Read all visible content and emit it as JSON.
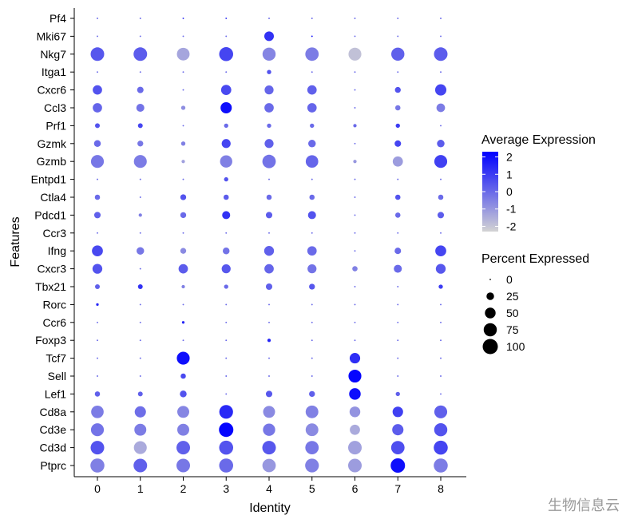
{
  "watermark": "生物信息云",
  "chart_data": {
    "type": "dotplot",
    "xlabel": "Identity",
    "ylabel": "Features",
    "categories": [
      "0",
      "1",
      "2",
      "3",
      "4",
      "5",
      "6",
      "7",
      "8"
    ],
    "features": [
      "Pf4",
      "Mki67",
      "Nkg7",
      "Itga1",
      "Cxcr6",
      "Ccl3",
      "Prf1",
      "Gzmk",
      "Gzmb",
      "Entpd1",
      "Ctla4",
      "Pdcd1",
      "Ccr3",
      "Ifng",
      "Cxcr3",
      "Tbx21",
      "Rorc",
      "Ccr6",
      "Foxp3",
      "Tcf7",
      "Sell",
      "Lef1",
      "Cd8a",
      "Cd3e",
      "Cd3d",
      "Ptprc"
    ],
    "percent_expressed": [
      [
        1,
        1,
        1,
        1,
        1,
        1,
        1,
        1,
        1
      ],
      [
        1,
        1,
        1,
        1,
        40,
        1,
        1,
        1,
        1
      ],
      [
        80,
        80,
        70,
        85,
        75,
        78,
        72,
        75,
        80
      ],
      [
        1,
        1,
        1,
        1,
        8,
        1,
        1,
        1,
        1
      ],
      [
        38,
        18,
        1,
        45,
        35,
        38,
        1,
        15,
        55
      ],
      [
        38,
        28,
        8,
        55,
        38,
        38,
        1,
        12,
        32
      ],
      [
        10,
        10,
        1,
        8,
        8,
        8,
        5,
        8,
        1
      ],
      [
        20,
        15,
        8,
        35,
        35,
        25,
        1,
        18,
        25
      ],
      [
        72,
        72,
        5,
        65,
        78,
        68,
        5,
        45,
        72
      ],
      [
        1,
        1,
        1,
        8,
        1,
        1,
        1,
        1,
        1
      ],
      [
        12,
        1,
        15,
        12,
        12,
        12,
        1,
        12,
        12
      ],
      [
        18,
        5,
        15,
        28,
        18,
        28,
        1,
        12,
        18
      ],
      [
        1,
        1,
        1,
        1,
        1,
        1,
        1,
        1,
        1
      ],
      [
        52,
        25,
        15,
        20,
        42,
        38,
        1,
        18,
        52
      ],
      [
        42,
        1,
        38,
        35,
        38,
        35,
        12,
        28,
        42
      ],
      [
        10,
        10,
        5,
        8,
        18,
        15,
        1,
        1,
        8
      ],
      [
        3,
        1,
        1,
        1,
        1,
        1,
        1,
        1,
        1
      ],
      [
        1,
        1,
        3,
        1,
        1,
        1,
        1,
        1,
        1
      ],
      [
        1,
        1,
        1,
        1,
        5,
        1,
        1,
        1,
        1
      ],
      [
        1,
        1,
        72,
        1,
        1,
        1,
        48,
        1,
        1
      ],
      [
        1,
        1,
        12,
        1,
        1,
        1,
        72,
        1,
        1
      ],
      [
        12,
        10,
        20,
        1,
        18,
        15,
        58,
        8,
        1
      ],
      [
        68,
        55,
        62,
        82,
        62,
        70,
        50,
        48,
        72
      ],
      [
        72,
        62,
        62,
        90,
        65,
        70,
        45,
        55,
        75
      ],
      [
        80,
        72,
        80,
        85,
        80,
        78,
        80,
        78,
        85
      ],
      [
        85,
        80,
        80,
        85,
        78,
        82,
        80,
        90,
        85
      ]
    ],
    "average_expression": [
      [
        0,
        0,
        1,
        1,
        0,
        0,
        0,
        0,
        0
      ],
      [
        0,
        0,
        0,
        0,
        1.2,
        2,
        0,
        0,
        0
      ],
      [
        0.4,
        0.3,
        -1.3,
        0.8,
        -0.6,
        -0.4,
        -1.9,
        0.2,
        0.3
      ],
      [
        0,
        0,
        0,
        0,
        0.5,
        0,
        0,
        0,
        0
      ],
      [
        0.5,
        0,
        0,
        0.7,
        0.1,
        0.2,
        0,
        0.5,
        0.8
      ],
      [
        0.1,
        -0.2,
        -0.8,
        2,
        0,
        0.1,
        0,
        -0.3,
        -0.4
      ],
      [
        0.5,
        0.8,
        0,
        0,
        0,
        0,
        0,
        1,
        0
      ],
      [
        0,
        -0.3,
        -0.5,
        0.8,
        0.2,
        0,
        0,
        0.8,
        0.3
      ],
      [
        -0.3,
        -0.4,
        -1.2,
        -0.5,
        -0.2,
        0.1,
        -1,
        -1.1,
        0.9
      ],
      [
        0,
        0,
        0,
        0.5,
        0,
        0,
        0,
        0,
        0
      ],
      [
        0,
        0,
        0.5,
        0.3,
        0,
        0,
        0,
        0.5,
        0
      ],
      [
        0.2,
        -0.5,
        0,
        1.2,
        0.3,
        0.5,
        0,
        0,
        0.3
      ],
      [
        0,
        0,
        0,
        0,
        0,
        0,
        0,
        0,
        0
      ],
      [
        0.7,
        -0.3,
        -0.7,
        -0.2,
        0.2,
        0,
        0,
        0,
        0.8
      ],
      [
        0.5,
        0,
        0.3,
        0.4,
        0.1,
        -0.2,
        -0.5,
        0,
        0.4
      ],
      [
        0.2,
        1.2,
        -0.5,
        0,
        0.2,
        0.4,
        0,
        0,
        1
      ],
      [
        1.5,
        0,
        0,
        0,
        0,
        0,
        0,
        0,
        0
      ],
      [
        0,
        0,
        1.5,
        0,
        0,
        0,
        0,
        0,
        0
      ],
      [
        0,
        0,
        0,
        0,
        1.5,
        0,
        0,
        0,
        0
      ],
      [
        0,
        0,
        2,
        0,
        0,
        0,
        1.3,
        0,
        0
      ],
      [
        0,
        0,
        0.7,
        0,
        0,
        0,
        2.2,
        0,
        0
      ],
      [
        0.2,
        0.2,
        0.5,
        0,
        0.4,
        0.2,
        2,
        0.2,
        0
      ],
      [
        -0.4,
        -0.1,
        -0.6,
        1.4,
        -0.7,
        -0.5,
        -0.9,
        0.9,
        0.2
      ],
      [
        -0.2,
        -0.4,
        -0.5,
        2.2,
        -0.3,
        -0.7,
        -1.4,
        0.3,
        0.5
      ],
      [
        0.5,
        -1.4,
        0.2,
        0.5,
        0.4,
        -0.3,
        -1.2,
        0.6,
        0.8
      ],
      [
        -0.5,
        0.2,
        -0.3,
        0,
        -1,
        -0.5,
        -1.1,
        2,
        -0.4
      ]
    ],
    "color_scale": {
      "low": "#d3d3d3",
      "high": "#0000ff",
      "min": -2.3,
      "max": 2.3
    },
    "legends": {
      "color": {
        "title": "Average Expression",
        "ticks": [
          2,
          1,
          0,
          -1,
          -2
        ]
      },
      "size": {
        "title": "Percent Expressed",
        "ticks": [
          0,
          25,
          50,
          75,
          100
        ]
      }
    },
    "grid": false,
    "legend_position": "right"
  }
}
